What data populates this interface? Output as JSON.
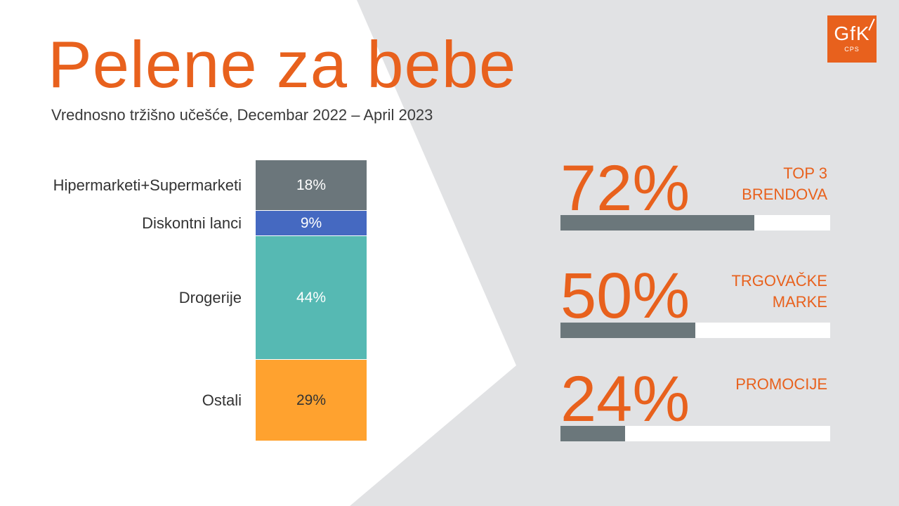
{
  "header": {
    "title": "Pelene za bebe",
    "subtitle": "Vrednosno tržišno učešće, Decembar 2022 – April 2023"
  },
  "logo": {
    "brand": "GfK",
    "sub": "CPS"
  },
  "colors": {
    "accent": "#e8611d",
    "background_panel": "#e1e2e4",
    "kpi_bar": "#6b777b"
  },
  "chart_data": {
    "type": "bar",
    "stacked": true,
    "categories": [
      "Hipermarketi+Supermarketi",
      "Diskontni lanci",
      "Drogerije",
      "Ostali"
    ],
    "values": [
      18,
      9,
      44,
      29
    ],
    "data_labels": [
      "18%",
      "9%",
      "44%",
      "29%"
    ],
    "colors": [
      "#6b767b",
      "#4569c1",
      "#56b9b3",
      "#ffa22f"
    ],
    "label_colors": [
      "#ffffff",
      "#ffffff",
      "#ffffff",
      "#333333"
    ],
    "ylim": [
      0,
      100
    ]
  },
  "kpis": [
    {
      "value": 72,
      "display": "72%",
      "label": "TOP 3\nBRENDOVA"
    },
    {
      "value": 50,
      "display": "50%",
      "label": "TRGOVAČKE\nMARKE"
    },
    {
      "value": 24,
      "display": "24%",
      "label": "PROMOCIJE"
    }
  ]
}
